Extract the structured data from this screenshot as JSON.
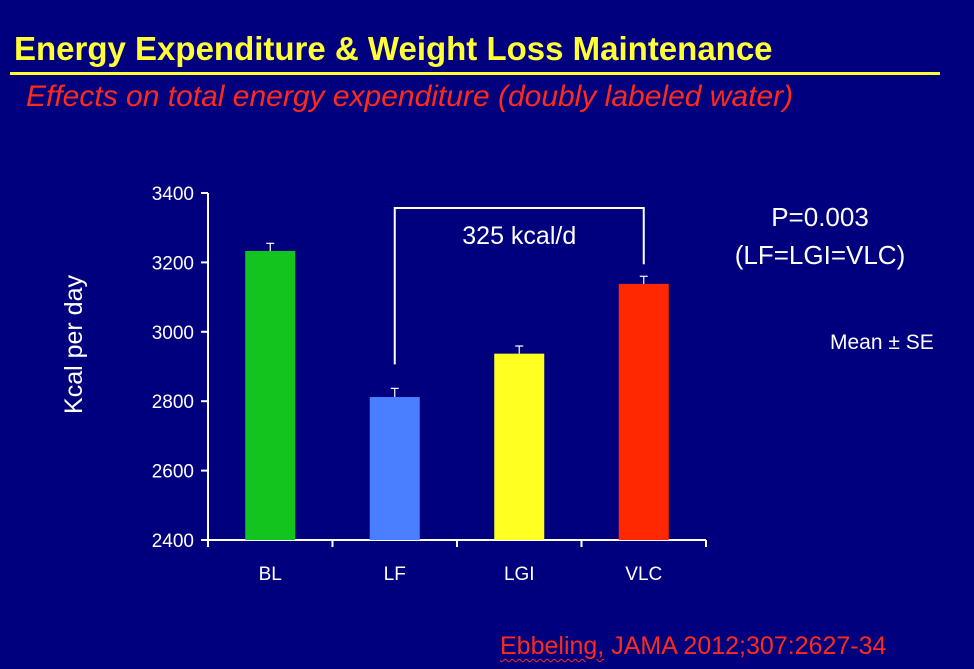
{
  "slide": {
    "title": "Energy Expenditure & Weight Loss Maintenance",
    "subtitle": "Effects on total energy expenditure (doubly labeled water)",
    "stats": {
      "p_line": "P=0.003",
      "comparison_line": "(LF=LGI=VLC)"
    },
    "legend_note": "Mean ± SE",
    "citation_author": "Ebbeling,",
    "citation_rest": " JAMA 2012;307:2627-34",
    "colors": {
      "background": "#00007f",
      "title": "#ffff33",
      "subtitle": "#ff2a1a"
    }
  },
  "chart_data": {
    "type": "bar",
    "categories": [
      "BL",
      "LF",
      "LGI",
      "VLC"
    ],
    "values": [
      3233,
      2812,
      2937,
      3138
    ],
    "errors": [
      22,
      25,
      22,
      22
    ],
    "colors": [
      "#14c41e",
      "#4a7fff",
      "#ffff22",
      "#ff2800"
    ],
    "ylabel": "Kcal per day",
    "ylim": [
      2400,
      3400
    ],
    "yticks": [
      2400,
      2600,
      2800,
      3000,
      3200,
      3400
    ],
    "grid": false,
    "annotation": {
      "text": "325 kcal/d",
      "from": "LF",
      "to": "VLC"
    }
  }
}
